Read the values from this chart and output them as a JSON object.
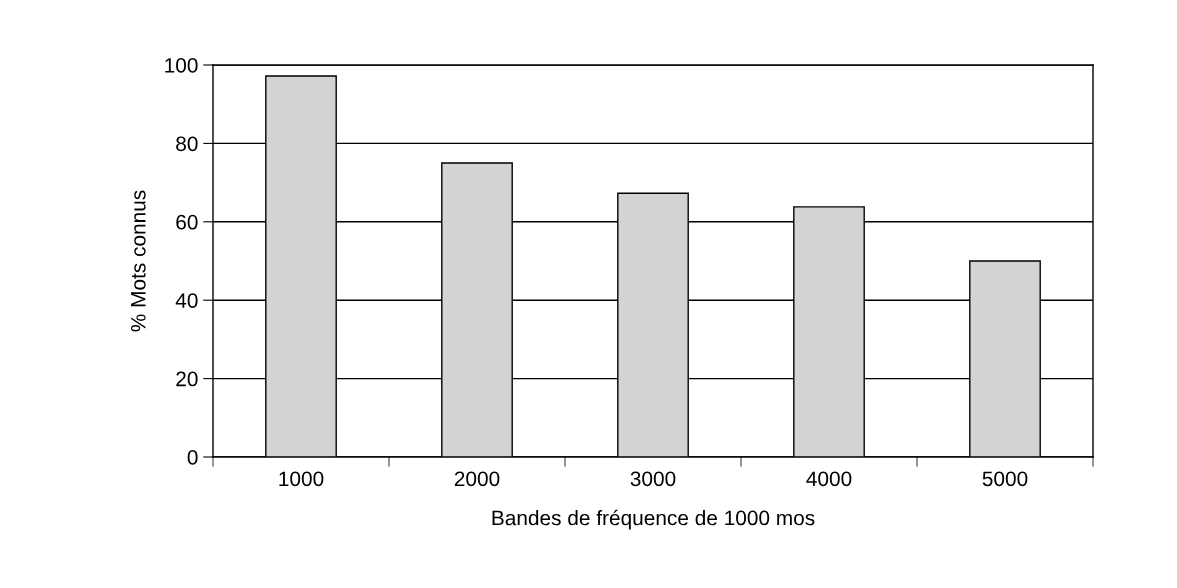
{
  "chart_data": {
    "type": "bar",
    "xlabel": "Bandes de fréquence de 1000 mos",
    "ylabel": "% Mots connus",
    "categories": [
      "1000",
      "2000",
      "3000",
      "4000",
      "5000"
    ],
    "values": [
      97.2,
      75,
      67.3,
      63.8,
      50
    ],
    "color": "#d3d3d3",
    "ylim": [
      0,
      100
    ],
    "yticks": [
      0,
      20,
      40,
      60,
      80,
      100
    ],
    "grid": "y"
  }
}
